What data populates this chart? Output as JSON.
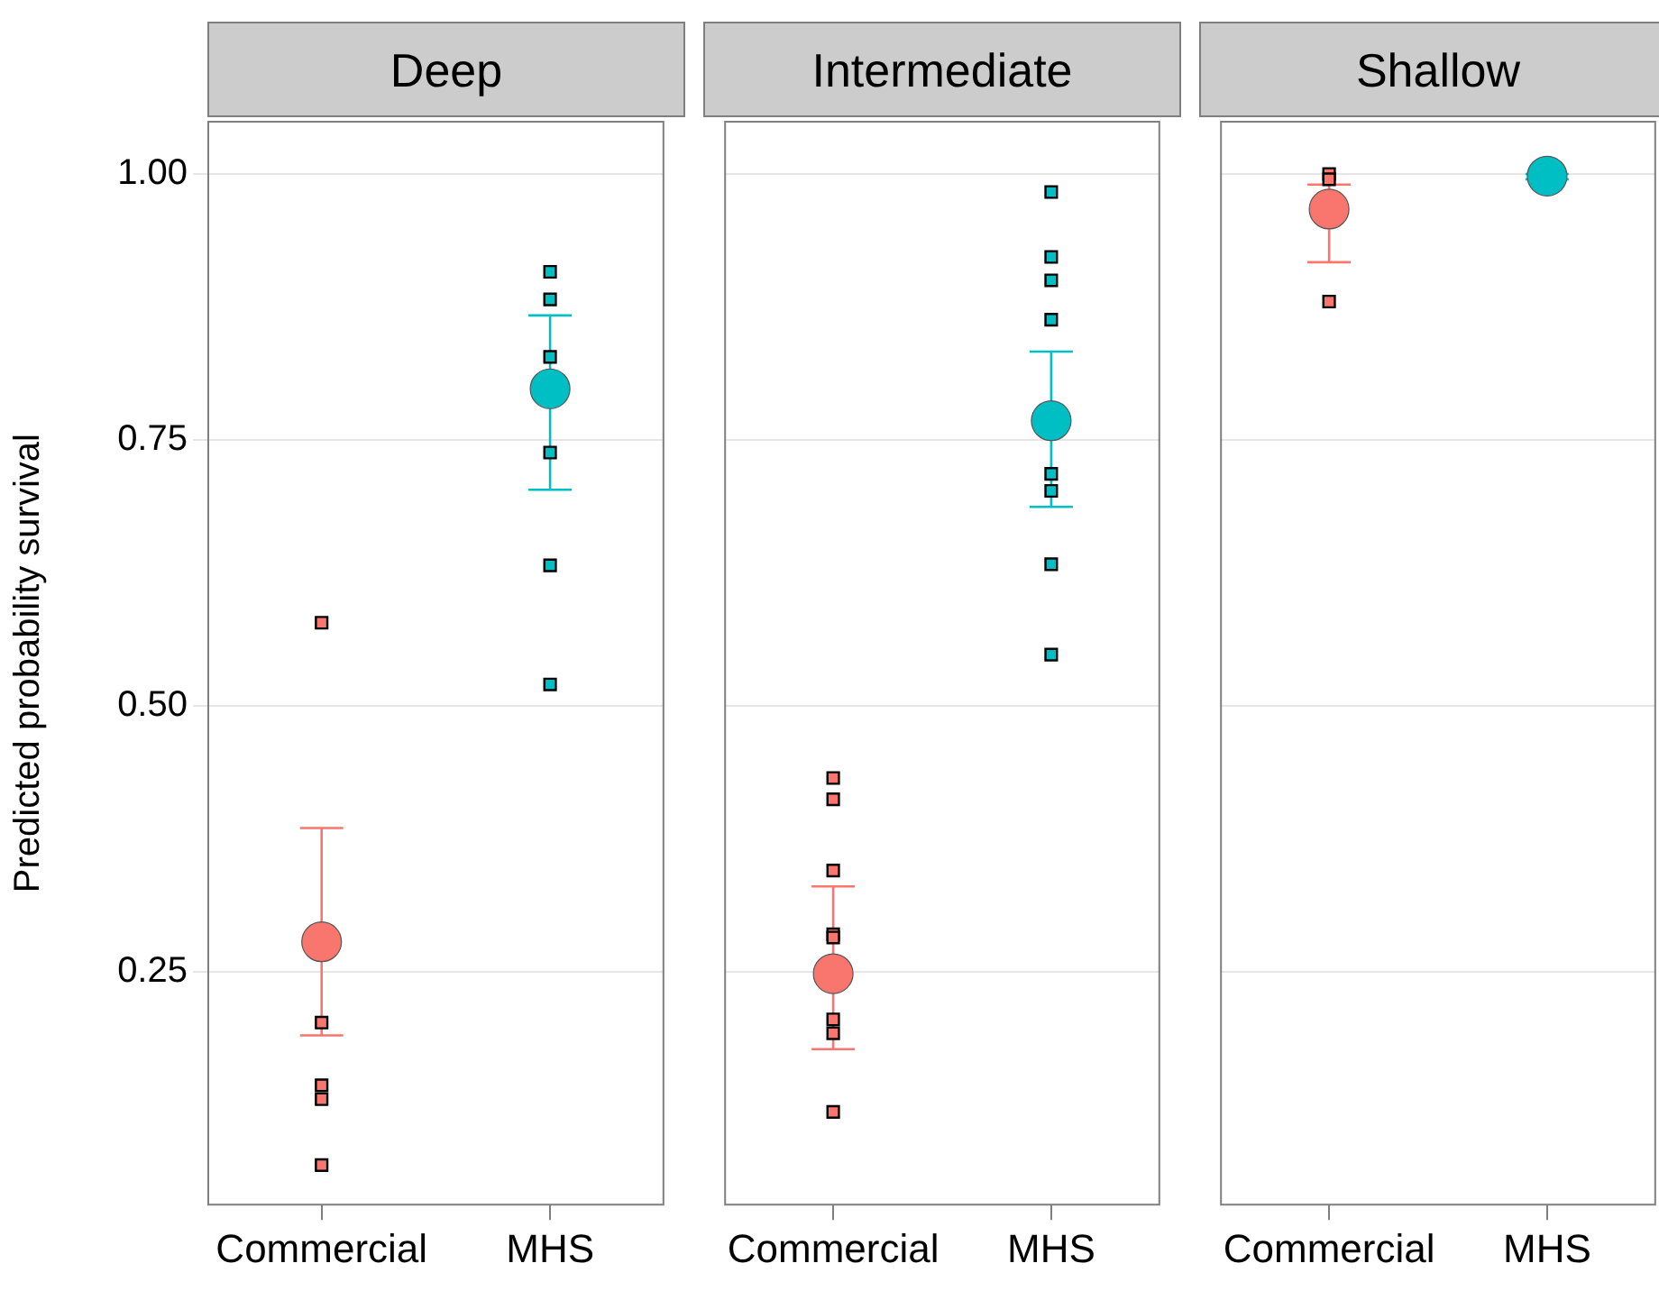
{
  "chart_data": [
    {
      "type": "scatter",
      "title": "Deep",
      "ylabel": "Predicted probability survival",
      "categories": [
        "Commercial",
        "MHS"
      ],
      "ylim": [
        0.03,
        1.05
      ],
      "yticks": [
        {
          "value": 0.25,
          "label": "0.25"
        },
        {
          "value": 0.5,
          "label": "0.50"
        },
        {
          "value": 0.75,
          "label": "0.75"
        },
        {
          "value": 1,
          "label": "1.00"
        }
      ],
      "grid": "y",
      "series": [
        {
          "type": "scatter",
          "marker": "circle",
          "x": [
            "Commercial",
            "MHS"
          ],
          "values": [
            0.278,
            0.798
          ],
          "colors": [
            "#f8766d",
            "#00bfc4"
          ],
          "errors": [
            [
              0.19,
              0.385
            ],
            [
              0.703,
              0.867
            ]
          ]
        },
        {
          "type": "scatter",
          "marker": "square",
          "x": [
            "Commercial",
            "Commercial",
            "Commercial",
            "Commercial",
            "Commercial",
            "MHS",
            "MHS",
            "MHS",
            "MHS",
            "MHS",
            "MHS"
          ],
          "values": [
            0.578,
            0.202,
            0.143,
            0.13,
            0.068,
            0.908,
            0.882,
            0.828,
            0.738,
            0.632,
            0.52
          ],
          "colors": [
            "#f8766d",
            "#f8766d",
            "#f8766d",
            "#f8766d",
            "#f8766d",
            "#00bfc4",
            "#00bfc4",
            "#00bfc4",
            "#00bfc4",
            "#00bfc4",
            "#00bfc4"
          ]
        }
      ]
    },
    {
      "type": "scatter",
      "title": "Intermediate",
      "categories": [
        "Commercial",
        "MHS"
      ],
      "ylim": [
        0.03,
        1.05
      ],
      "yticks": [
        {
          "value": 0.25,
          "label": null
        },
        {
          "value": 0.5,
          "label": null
        },
        {
          "value": 0.75,
          "label": null
        },
        {
          "value": 1,
          "label": null
        }
      ],
      "grid": "y",
      "tick_labels": "x",
      "series": [
        {
          "type": "scatter",
          "marker": "circle",
          "x": [
            "Commercial",
            "MHS"
          ],
          "values": [
            0.248,
            0.768
          ],
          "colors": [
            "#f8766d",
            "#00bfc4"
          ],
          "errors": [
            [
              0.177,
              0.33
            ],
            [
              0.687,
              0.833
            ]
          ]
        },
        {
          "type": "scatter",
          "marker": "square",
          "x": [
            "Commercial",
            "Commercial",
            "Commercial",
            "Commercial",
            "Commercial",
            "Commercial",
            "Commercial",
            "Commercial",
            "MHS",
            "MHS",
            "MHS",
            "MHS",
            "MHS",
            "MHS",
            "MHS",
            "MHS"
          ],
          "values": [
            0.432,
            0.412,
            0.345,
            0.285,
            0.282,
            0.205,
            0.192,
            0.118,
            0.983,
            0.922,
            0.9,
            0.863,
            0.718,
            0.702,
            0.633,
            0.548
          ],
          "colors": [
            "#f8766d",
            "#f8766d",
            "#f8766d",
            "#f8766d",
            "#f8766d",
            "#f8766d",
            "#f8766d",
            "#f8766d",
            "#00bfc4",
            "#00bfc4",
            "#00bfc4",
            "#00bfc4",
            "#00bfc4",
            "#00bfc4",
            "#00bfc4",
            "#00bfc4"
          ]
        }
      ]
    },
    {
      "type": "scatter",
      "title": "Shallow",
      "categories": [
        "Commercial",
        "MHS"
      ],
      "ylim": [
        0.03,
        1.05
      ],
      "yticks": [
        {
          "value": 0.25,
          "label": null
        },
        {
          "value": 0.5,
          "label": null
        },
        {
          "value": 0.75,
          "label": null
        },
        {
          "value": 1,
          "label": null
        }
      ],
      "grid": "y",
      "tick_labels": "x",
      "series": [
        {
          "type": "scatter",
          "marker": "circle",
          "x": [
            "Commercial",
            "MHS"
          ],
          "values": [
            0.967,
            0.998
          ],
          "colors": [
            "#f8766d",
            "#00bfc4"
          ],
          "errors": [
            [
              0.917,
              0.99
            ],
            [
              0.995,
              1.0
            ]
          ]
        },
        {
          "type": "scatter",
          "marker": "square",
          "x": [
            "Commercial",
            "Commercial",
            "Commercial"
          ],
          "values": [
            1.0,
            0.995,
            0.88
          ],
          "colors": [
            "#f8766d",
            "#f8766d",
            "#f8766d"
          ]
        }
      ]
    }
  ]
}
